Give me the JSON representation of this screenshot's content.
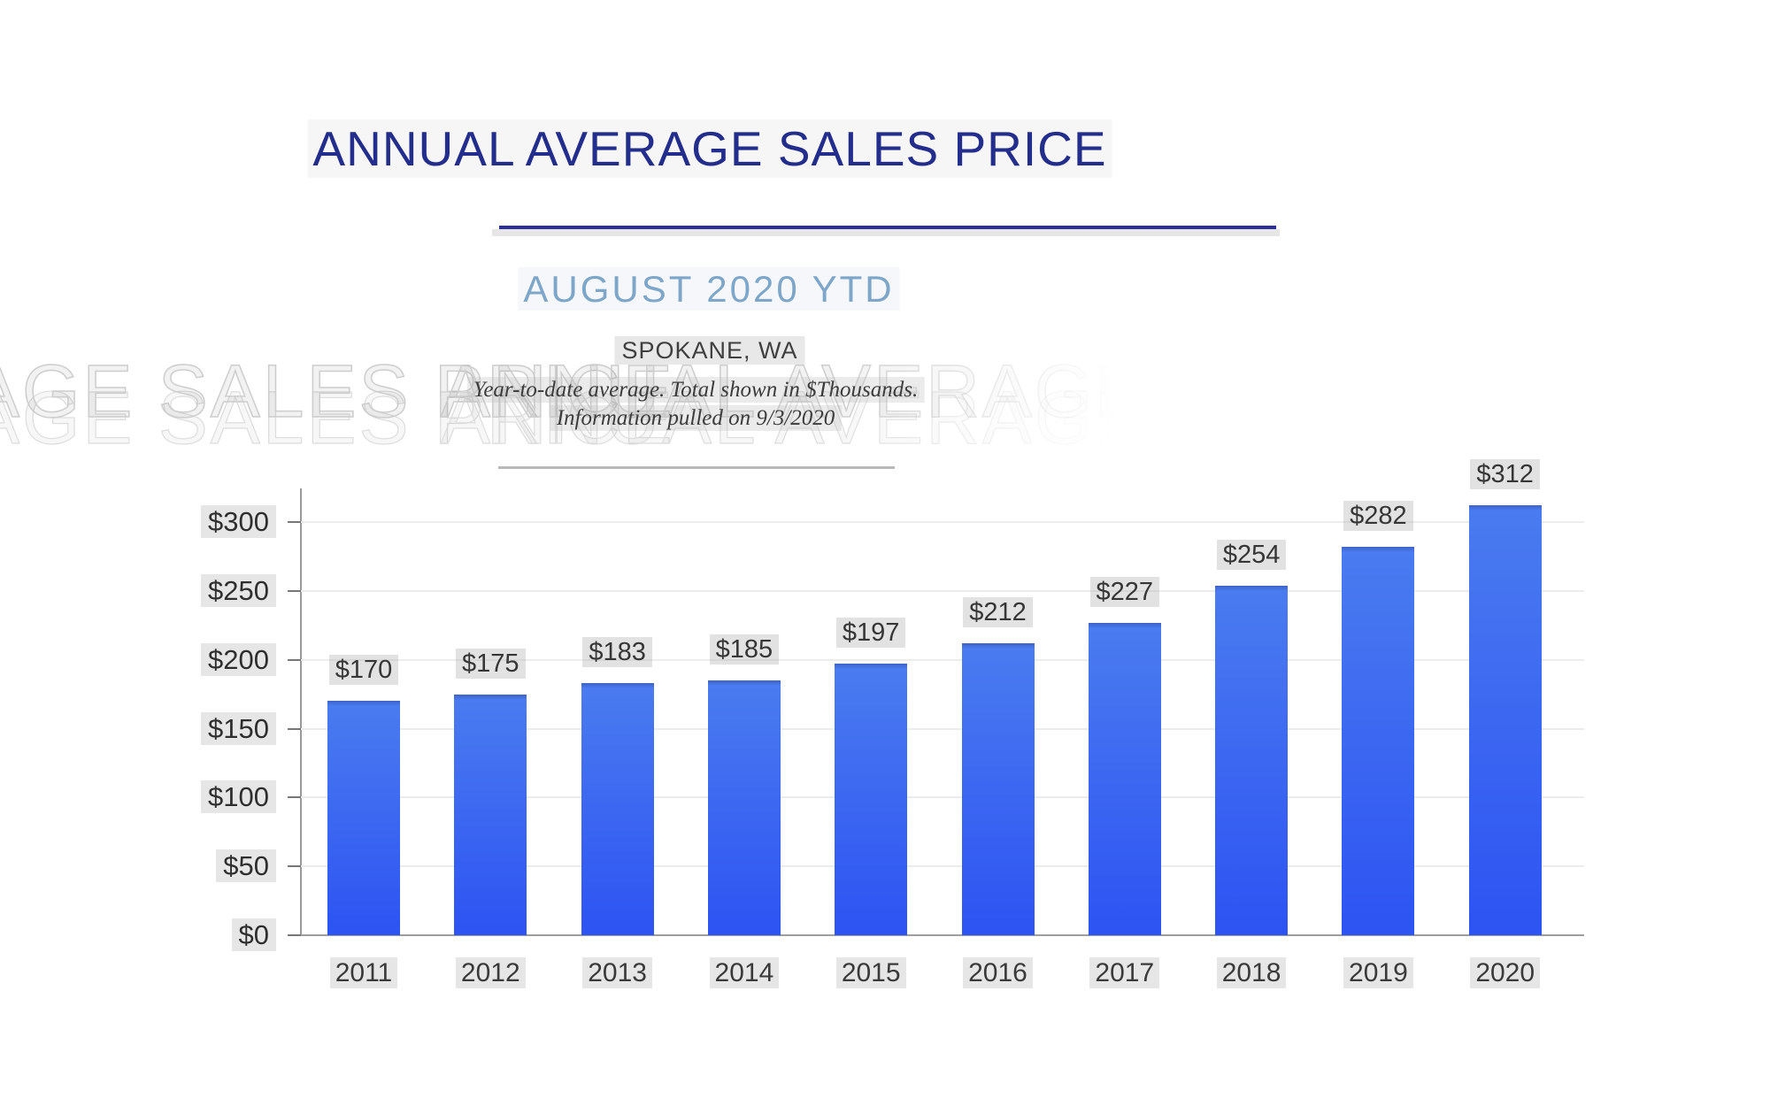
{
  "header": {
    "title": "ANNUAL AVERAGE SALES PRICE",
    "subtitle": "AUGUST 2020 YTD",
    "location": "SPOKANE, WA",
    "note_line1": "Year-to-date average.  Total shown in $Thousands.",
    "note_line2": "Information pulled on 9/3/2020"
  },
  "watermark": {
    "text_left": "AGE SALES PRICE",
    "text_right": "ANNUAL AVERAGE"
  },
  "chart_data": {
    "type": "bar",
    "title": "Annual Average Sales Price",
    "subtitle": "August 2020 YTD — Spokane, WA",
    "categories": [
      "2011",
      "2012",
      "2013",
      "2014",
      "2015",
      "2016",
      "2017",
      "2018",
      "2019",
      "2020"
    ],
    "values": [
      170,
      175,
      183,
      185,
      197,
      212,
      227,
      254,
      282,
      312
    ],
    "bar_labels": [
      "$170",
      "$175",
      "$183",
      "$185",
      "$197",
      "$212",
      "$227",
      "$254",
      "$282",
      "$312"
    ],
    "y_ticks": [
      "$0",
      "$50",
      "$100",
      "$150",
      "$200",
      "$250",
      "$300"
    ],
    "y_tick_values": [
      0,
      50,
      100,
      150,
      200,
      250,
      300
    ],
    "ylim": [
      0,
      300
    ],
    "xlabel": "",
    "ylabel": "",
    "units": "$Thousands",
    "grid": true,
    "legend": "none"
  },
  "colors": {
    "title_navy": "#232d8c",
    "underline_navy": "#2a2f9b",
    "subtitle_blue": "#7da6c9",
    "bar_top": "#4a7bf0",
    "bar_bottom": "#2d53f2",
    "bar_cap": "#3e63c8",
    "gridline": "#ececec",
    "axis": "#9a9a9a",
    "label_text": "#363636",
    "watermark_gray": "#cdcdcd"
  }
}
